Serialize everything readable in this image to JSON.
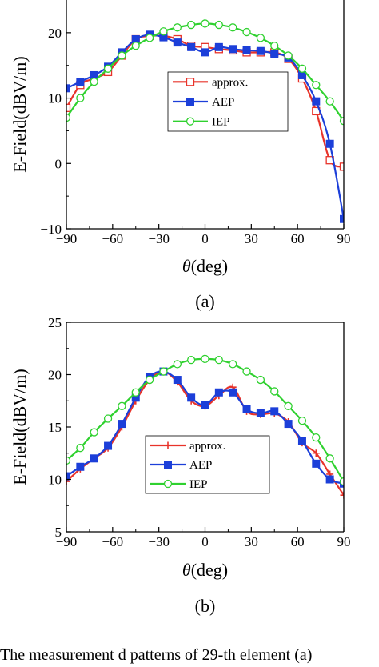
{
  "colors": {
    "approx": "#e8332a",
    "AEP": "#1c3fd9",
    "IEP": "#2fd12f",
    "axis": "#000000"
  },
  "chart_data": [
    {
      "type": "line",
      "panel_label": "(a)",
      "xlabel": "θ(deg)",
      "ylabel": "E-Field(dBV/m)",
      "xlim": [
        -90,
        90
      ],
      "ylim": [
        -10,
        25
      ],
      "xticks": [
        -90,
        -60,
        -30,
        0,
        30,
        60,
        90
      ],
      "yticks": [
        -10,
        0,
        10,
        20
      ],
      "grid": false,
      "legend_position": "center-right",
      "series": [
        {
          "name": "approx.",
          "color": "#e8332a",
          "marker": "open-square",
          "x": [
            -90,
            -81,
            -72,
            -63,
            -54,
            -45,
            -36,
            -27,
            -18,
            -9,
            0,
            9,
            18,
            27,
            36,
            45,
            54,
            63,
            72,
            81,
            90
          ],
          "y": [
            8.5,
            12,
            13,
            14,
            16.5,
            19,
            19.5,
            19.5,
            19,
            18,
            17.8,
            17.5,
            17.3,
            17,
            17,
            17,
            16,
            13,
            8,
            0.5,
            -0.5
          ]
        },
        {
          "name": "AEP",
          "color": "#1c3fd9",
          "marker": "filled-square",
          "x": [
            -90,
            -81,
            -72,
            -63,
            -54,
            -45,
            -36,
            -27,
            -18,
            -9,
            0,
            9,
            18,
            27,
            36,
            45,
            54,
            63,
            72,
            81,
            90
          ],
          "y": [
            11.5,
            12.5,
            13.5,
            14.8,
            17,
            19,
            19.7,
            19.3,
            18.5,
            17.8,
            17.0,
            17.8,
            17.5,
            17.3,
            17.2,
            16.8,
            16.2,
            13.5,
            9.5,
            3,
            -8.5
          ]
        },
        {
          "name": "IEP",
          "color": "#2fd12f",
          "marker": "open-circle",
          "x": [
            -90,
            -81,
            -72,
            -63,
            -54,
            -45,
            -36,
            -27,
            -18,
            -9,
            0,
            9,
            18,
            27,
            36,
            45,
            54,
            63,
            72,
            81,
            90
          ],
          "y": [
            7,
            10,
            12.5,
            14.5,
            16.5,
            18,
            19.2,
            20.2,
            20.8,
            21.2,
            21.4,
            21.2,
            20.8,
            20.1,
            19.2,
            18,
            16.5,
            14.5,
            12,
            9.5,
            6.5
          ]
        }
      ]
    },
    {
      "type": "line",
      "panel_label": "(b)",
      "xlabel": "θ(deg)",
      "ylabel": "E-Field(dBV/m)",
      "xlim": [
        -90,
        90
      ],
      "ylim": [
        5,
        25
      ],
      "xticks": [
        -90,
        -60,
        -30,
        0,
        30,
        60,
        90
      ],
      "yticks": [
        5,
        10,
        15,
        20,
        25
      ],
      "grid": false,
      "legend_position": "bottom-center",
      "series": [
        {
          "name": "approx.",
          "color": "#e8332a",
          "marker": "plus",
          "x": [
            -90,
            -81,
            -72,
            -63,
            -54,
            -45,
            -36,
            -27,
            -18,
            -9,
            0,
            9,
            18,
            27,
            36,
            45,
            54,
            63,
            72,
            81,
            90
          ],
          "y": [
            9.8,
            11,
            12,
            13,
            15,
            17.5,
            19.5,
            20.3,
            19.3,
            17.5,
            17,
            18,
            18.8,
            16.5,
            16.2,
            16.3,
            15.5,
            13.5,
            12.5,
            10.5,
            8.5
          ]
        },
        {
          "name": "AEP",
          "color": "#1c3fd9",
          "marker": "filled-square",
          "x": [
            -90,
            -81,
            -72,
            -63,
            -54,
            -45,
            -36,
            -27,
            -18,
            -9,
            0,
            9,
            18,
            27,
            36,
            45,
            54,
            63,
            72,
            81,
            90
          ],
          "y": [
            10.3,
            11.2,
            12,
            13.2,
            15.3,
            17.8,
            19.8,
            20.3,
            19.5,
            17.8,
            17.1,
            18.3,
            18.3,
            16.7,
            16.3,
            16.5,
            15.3,
            13.7,
            11.5,
            10,
            9.6
          ]
        },
        {
          "name": "IEP",
          "color": "#2fd12f",
          "marker": "open-circle",
          "x": [
            -90,
            -81,
            -72,
            -63,
            -54,
            -45,
            -36,
            -27,
            -18,
            -9,
            0,
            9,
            18,
            27,
            36,
            45,
            54,
            63,
            72,
            81,
            90
          ],
          "y": [
            11.8,
            13,
            14.5,
            15.8,
            17,
            18.3,
            19.5,
            20.3,
            21,
            21.4,
            21.5,
            21.4,
            21,
            20.3,
            19.5,
            18.4,
            17,
            15.6,
            14,
            12,
            9.8
          ]
        }
      ]
    }
  ],
  "caption": "The measurement   d patterns of 29-th element (a)"
}
